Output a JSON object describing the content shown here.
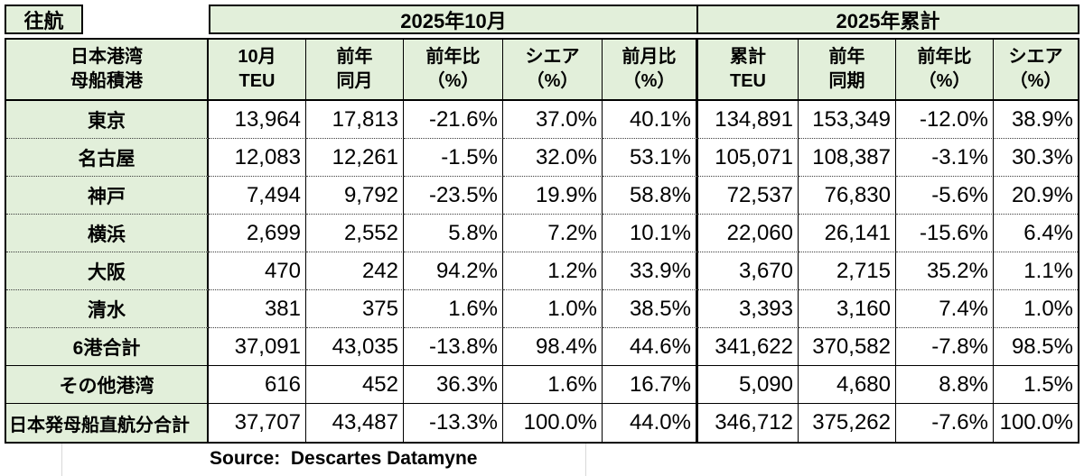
{
  "sheet": {
    "corner_label": "往航",
    "group_headers": {
      "month": "2025年10月",
      "cumulative": "2025年累計"
    },
    "columns": {
      "port": "日本港湾\n母船積港",
      "month": [
        "10月\nTEU",
        "前年\n同月",
        "前年比\n（%）",
        "シエア\n（%）",
        "前月比\n（%）"
      ],
      "cumulative": [
        "累計\nTEU",
        "前年\n同期",
        "前年比\n（%）",
        "シエア\n（%）"
      ]
    },
    "rows": [
      {
        "label": "東京",
        "cells": [
          "13,964",
          "17,813",
          "-21.6%",
          "37.0%",
          "40.1%",
          "134,891",
          "153,349",
          "-12.0%",
          "38.9%"
        ]
      },
      {
        "label": "名古屋",
        "cells": [
          "12,083",
          "12,261",
          "-1.5%",
          "32.0%",
          "53.1%",
          "105,071",
          "108,387",
          "-3.1%",
          "30.3%"
        ]
      },
      {
        "label": "神戸",
        "cells": [
          "7,494",
          "9,792",
          "-23.5%",
          "19.9%",
          "58.8%",
          "72,537",
          "76,830",
          "-5.6%",
          "20.9%"
        ]
      },
      {
        "label": "横浜",
        "cells": [
          "2,699",
          "2,552",
          "5.8%",
          "7.2%",
          "10.1%",
          "22,060",
          "26,141",
          "-15.6%",
          "6.4%"
        ]
      },
      {
        "label": "大阪",
        "cells": [
          "470",
          "242",
          "94.2%",
          "1.2%",
          "33.9%",
          "3,670",
          "2,715",
          "35.2%",
          "1.1%"
        ]
      },
      {
        "label": "清水",
        "cells": [
          "381",
          "375",
          "1.6%",
          "1.0%",
          "38.5%",
          "3,393",
          "3,160",
          "7.4%",
          "1.0%"
        ]
      },
      {
        "label": "6港合計",
        "cells": [
          "37,091",
          "43,035",
          "-13.8%",
          "98.4%",
          "44.6%",
          "341,622",
          "370,582",
          "-7.8%",
          "98.5%"
        ]
      },
      {
        "label": "その他港湾",
        "cells": [
          "616",
          "452",
          "36.3%",
          "1.6%",
          "16.7%",
          "5,090",
          "4,680",
          "8.8%",
          "1.5%"
        ]
      },
      {
        "label": "日本発母船直航分合計",
        "cells": [
          "37,707",
          "43,487",
          "-13.3%",
          "100.0%",
          "44.0%",
          "346,712",
          "375,262",
          "-7.6%",
          "100.0%"
        ]
      }
    ],
    "source_note": "Source:  Descartes Datamyne",
    "colors": {
      "header_fill": "#e2efda",
      "border": "#000000"
    }
  }
}
